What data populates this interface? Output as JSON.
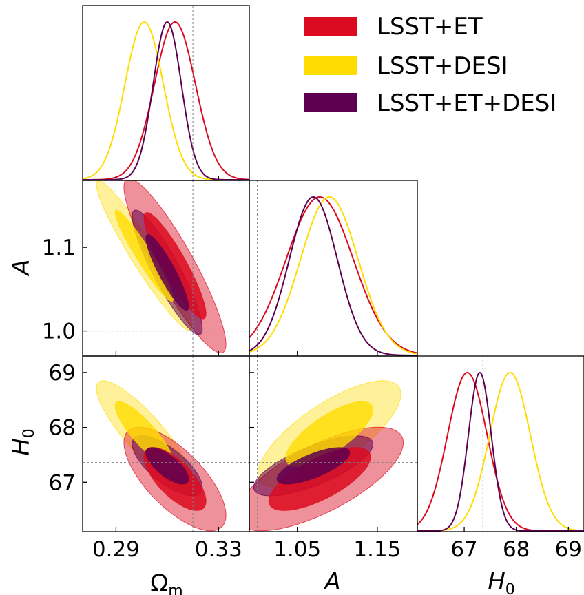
{
  "colors": {
    "lsst_et": "#dc0a1e",
    "lsst_desi": "#ffdd00",
    "lsst_et_desi": "#5e0050"
  },
  "chart_data": {
    "type": "corner",
    "parameters": [
      {
        "key": "Om",
        "label_main": "Ω",
        "label_sub": "m",
        "range": [
          0.277,
          0.342
        ],
        "ticks": [
          0.29,
          0.33
        ],
        "tick_labels": [
          "0.29",
          "0.33"
        ],
        "truth": 0.32
      },
      {
        "key": "A",
        "label_main": "A",
        "label_sub": "",
        "range": [
          0.97,
          1.18
        ],
        "ticks": [
          1.0,
          1.1
        ],
        "tick_labels": [
          "1.0",
          "1.1"
        ],
        "x_range": [
          0.99,
          1.2
        ],
        "x_ticks": [
          1.05,
          1.15
        ],
        "x_tick_labels": [
          "1.05",
          "1.15"
        ],
        "truth": 1.0
      },
      {
        "key": "H0",
        "label_main": "H",
        "label_sub": "0",
        "range": [
          66.1,
          69.3
        ],
        "ticks": [
          67,
          68,
          69
        ],
        "tick_labels": [
          "67",
          "68",
          "69"
        ],
        "x_range": [
          66.1,
          69.3
        ],
        "truth": 67.36
      }
    ],
    "legend": {
      "position": "top-right",
      "entries": [
        "LSST+ET",
        "LSST+DESI",
        "LSST+ET+DESI"
      ]
    },
    "series": [
      {
        "name": "LSST+ET",
        "color_key": "lsst_et",
        "mean": {
          "Om": 0.313,
          "A": 1.078,
          "H0": 67.06
        },
        "sd": {
          "Om": 0.008,
          "A": 0.042,
          "H0": 0.38
        },
        "corr": {
          "Om_A": -0.9,
          "Om_H0": -0.7,
          "A_H0": 0.7
        }
      },
      {
        "name": "LSST+DESI",
        "color_key": "lsst_desi",
        "mean": {
          "Om": 0.301,
          "A": 1.09,
          "H0": 67.88
        },
        "sd": {
          "Om": 0.0075,
          "A": 0.036,
          "H0": 0.39
        },
        "corr": {
          "Om_A": -0.95,
          "Om_H0": -0.86,
          "A_H0": 0.75
        }
      },
      {
        "name": "LSST+ET+DESI",
        "color_key": "lsst_et_desi",
        "mean": {
          "Om": 0.31,
          "A": 1.07,
          "H0": 67.3
        },
        "sd": {
          "Om": 0.0055,
          "A": 0.03,
          "H0": 0.22
        },
        "corr": {
          "Om_A": -0.9,
          "Om_H0": -0.72,
          "A_H0": 0.72
        }
      }
    ]
  }
}
